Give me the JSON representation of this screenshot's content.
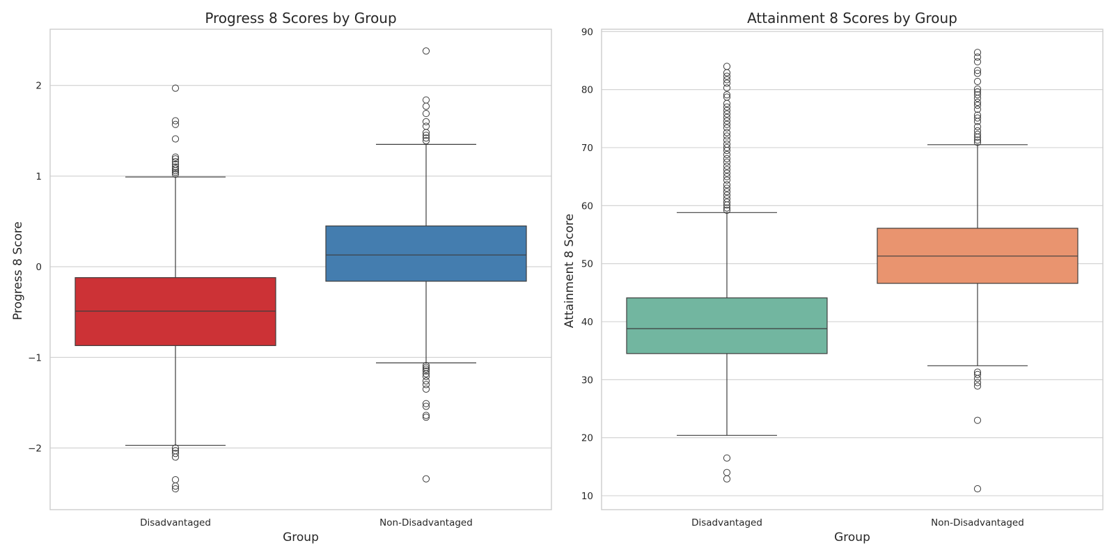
{
  "chart_data": [
    {
      "type": "box",
      "title": "Progress 8 Scores by Group",
      "xlabel": "Group",
      "ylabel": "Progress 8 Score",
      "ylim": [
        -2.68,
        2.62
      ],
      "yticks": [
        -2,
        -1,
        0,
        1,
        2
      ],
      "ytick_labels": [
        "−2",
        "−1",
        "0",
        "1",
        "2"
      ],
      "grid": true,
      "categories": [
        "Disadvantaged",
        "Non-Disadvantaged"
      ],
      "boxes": [
        {
          "category": "Disadvantaged",
          "color": "#cc3236",
          "whisker_low": -1.97,
          "q1": -0.87,
          "median": -0.49,
          "q3": -0.12,
          "whisker_high": 0.99,
          "outliers": [
            1.97,
            1.61,
            1.57,
            1.41,
            1.21,
            1.19,
            1.16,
            1.13,
            1.1,
            1.08,
            1.06,
            1.04,
            1.02,
            -2.0,
            -2.03,
            -2.06,
            -2.1,
            -2.35,
            -2.42,
            -2.45
          ]
        },
        {
          "category": "Non-Disadvantaged",
          "color": "#447daf",
          "whisker_low": -1.06,
          "q1": -0.16,
          "median": 0.13,
          "q3": 0.45,
          "whisker_high": 1.35,
          "outliers": [
            2.38,
            1.84,
            1.77,
            1.69,
            1.6,
            1.55,
            1.48,
            1.45,
            1.42,
            1.39,
            -1.09,
            -1.11,
            -1.13,
            -1.15,
            -1.18,
            -1.21,
            -1.26,
            -1.3,
            -1.35,
            -1.51,
            -1.54,
            -1.64,
            -1.66,
            -2.34
          ]
        }
      ]
    },
    {
      "type": "box",
      "title": "Attainment 8 Scores by Group",
      "xlabel": "Group",
      "ylabel": "Attainment 8 Score",
      "ylim": [
        7.6,
        90.4
      ],
      "yticks": [
        10,
        20,
        30,
        40,
        50,
        60,
        70,
        80,
        90
      ],
      "ytick_labels": [
        "10",
        "20",
        "30",
        "40",
        "50",
        "60",
        "70",
        "80",
        "90"
      ],
      "grid": true,
      "categories": [
        "Disadvantaged",
        "Non-Disadvantaged"
      ],
      "boxes": [
        {
          "category": "Disadvantaged",
          "color": "#72b6a0",
          "whisker_low": 20.4,
          "q1": 34.5,
          "median": 38.8,
          "q3": 44.1,
          "whisker_high": 58.8,
          "outliers": [
            84.0,
            82.9,
            82.3,
            81.7,
            81.1,
            80.3,
            79.1,
            78.7,
            77.6,
            77.0,
            76.4,
            75.8,
            75.2,
            74.6,
            74.0,
            73.4,
            72.6,
            72.0,
            71.3,
            70.6,
            70.0,
            69.5,
            68.8,
            68.1,
            67.5,
            66.8,
            66.2,
            65.6,
            65.0,
            64.4,
            63.6,
            63.0,
            62.4,
            61.8,
            61.2,
            60.6,
            60.1,
            59.6,
            59.2,
            16.5,
            14.0,
            12.9
          ]
        },
        {
          "category": "Non-Disadvantaged",
          "color": "#e9946f",
          "whisker_low": 32.4,
          "q1": 46.6,
          "median": 51.3,
          "q3": 56.1,
          "whisker_high": 70.5,
          "outliers": [
            86.4,
            85.6,
            84.8,
            83.3,
            82.8,
            81.4,
            80.1,
            79.6,
            79.1,
            78.5,
            77.8,
            77.3,
            76.6,
            75.6,
            75.1,
            74.5,
            73.6,
            72.9,
            72.3,
            71.8,
            71.3,
            70.9,
            31.3,
            30.9,
            30.2,
            29.5,
            28.9,
            23.0,
            11.2
          ]
        }
      ]
    }
  ]
}
